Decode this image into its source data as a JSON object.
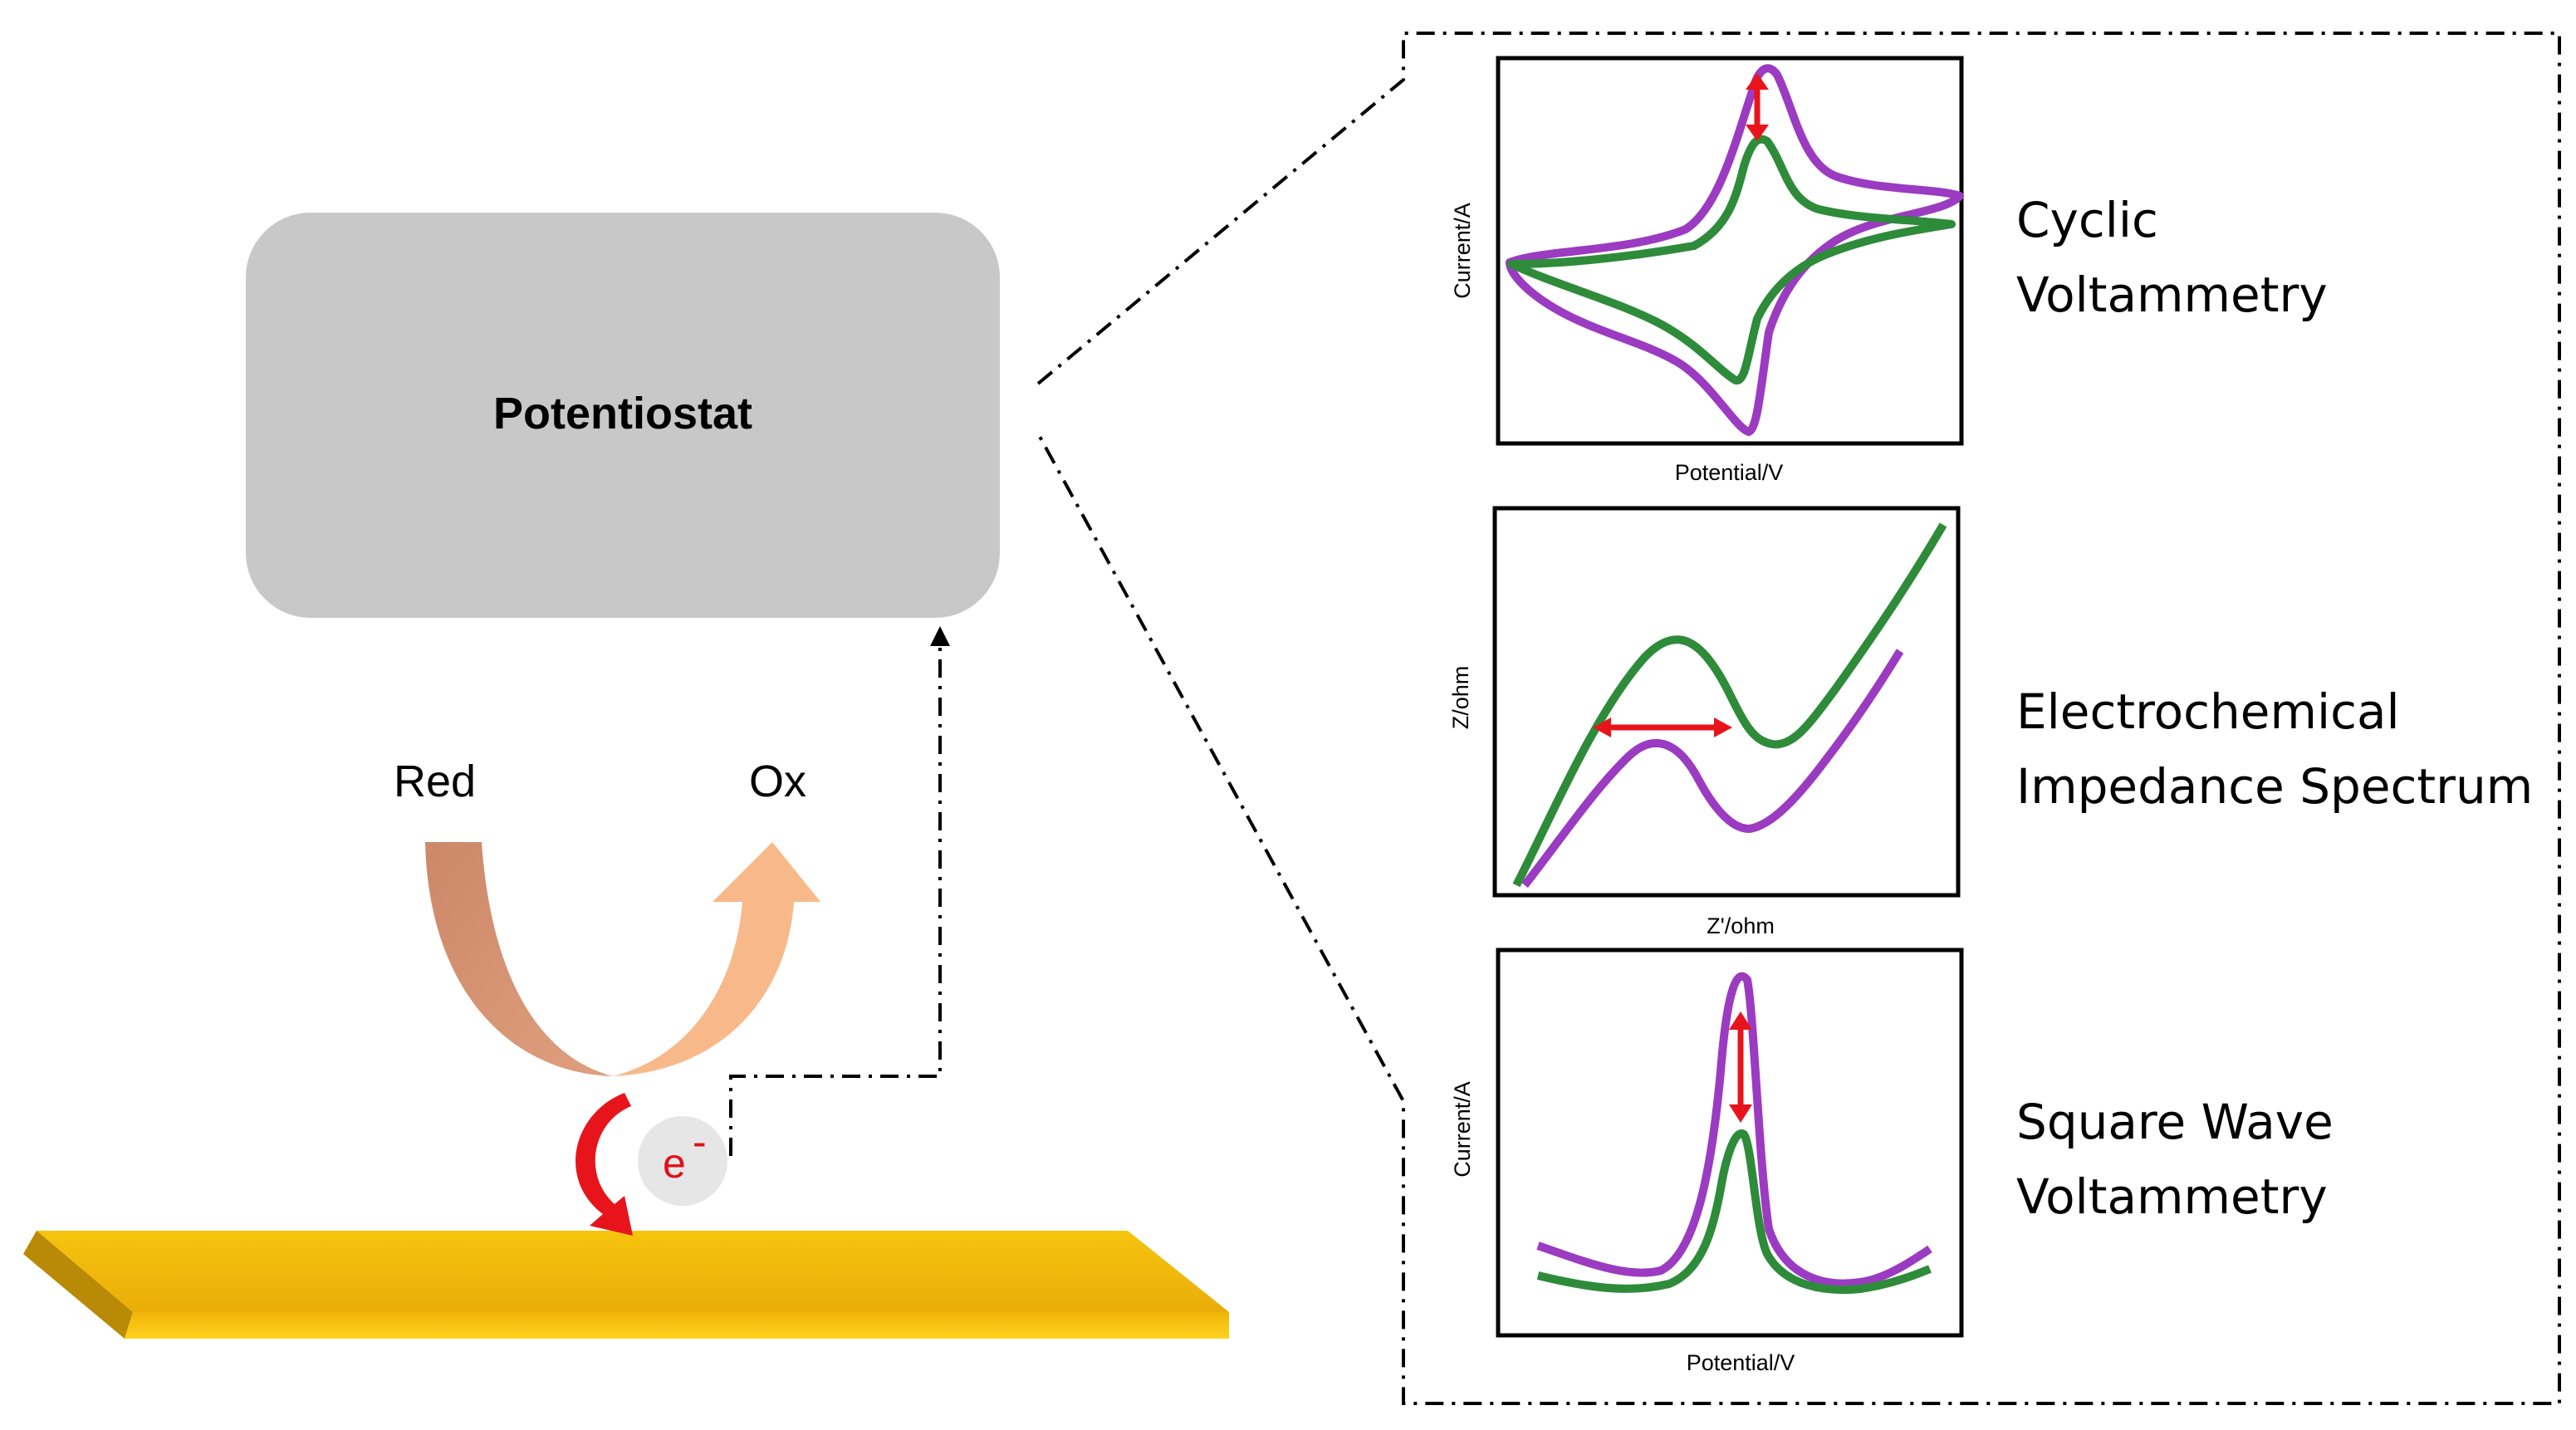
{
  "potentiostat": {
    "label": "Potentiostat"
  },
  "reaction": {
    "reduced_label": "Red",
    "oxidized_label": "Ox",
    "electron_symbol": "e",
    "electron_charge": "-"
  },
  "methods": [
    {
      "title_lines": [
        "Cyclic",
        "Voltammetry"
      ],
      "xlabel": "Potential/V",
      "ylabel": "Current/A"
    },
    {
      "title_lines": [
        "Electrochemical",
        "Impedance Spectrum"
      ],
      "xlabel": "Z'/ohm",
      "ylabel": "Z/ohm"
    },
    {
      "title_lines": [
        "Square Wave",
        "Voltammetry"
      ],
      "xlabel": "Potential/V",
      "ylabel": "Current/A"
    }
  ],
  "colors": {
    "purple_curve": "#9b3bc2",
    "green_curve": "#2e8b3a",
    "arrow_red": "#e8141c",
    "electrode_gold": "#f4c20d",
    "potentiostat_gray": "#c8c8c8",
    "red_arrow_brown": "#d39070",
    "ox_arrow_peach": "#f8b98a"
  }
}
